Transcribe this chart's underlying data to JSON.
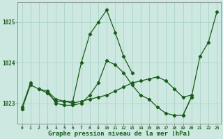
{
  "xlabel": "Graphe pression niveau de la mer (hPa)",
  "bg_color": "#cce8e0",
  "line_color": "#1a5c1a",
  "grid_color": "#aad4c8",
  "x_ticks": [
    0,
    1,
    2,
    3,
    4,
    5,
    6,
    7,
    8,
    9,
    10,
    11,
    12,
    13,
    14,
    15,
    16,
    17,
    18,
    19,
    20,
    21,
    22,
    23
  ],
  "ylim": [
    1022.5,
    1025.5
  ],
  "yticks": [
    1023,
    1024,
    1025
  ],
  "series1": [
    1022.9,
    1023.5,
    null,
    null,
    null,
    null,
    null,
    null,
    null,
    null,
    null,
    null,
    null,
    null,
    null,
    null,
    null,
    null,
    null,
    null,
    null,
    null,
    null,
    null
  ],
  "series2": [
    1022.85,
    1023.45,
    1023.35,
    1023.25,
    1023.05,
    1023.05,
    1023.05,
    1024.0,
    1024.7,
    1025.0,
    1025.3,
    1024.75,
    1024.15,
    1023.75,
    null,
    null,
    null,
    null,
    null,
    null,
    null,
    null,
    null,
    null
  ],
  "series3": [
    null,
    null,
    1023.35,
    1023.3,
    1023.1,
    1023.05,
    1023.0,
    1023.05,
    1023.1,
    1023.15,
    1023.2,
    1023.3,
    1023.4,
    1023.5,
    1023.55,
    1023.6,
    1023.65,
    1023.55,
    1023.35,
    1023.15,
    1023.2,
    null,
    null,
    null
  ],
  "series4": [
    null,
    null,
    null,
    1023.3,
    1023.0,
    1022.95,
    1022.95,
    1023.0,
    1023.2,
    1023.5,
    1024.05,
    1023.95,
    1023.75,
    1023.45,
    1023.2,
    1023.1,
    1022.9,
    1022.75,
    1022.7,
    1022.7,
    1023.15,
    null,
    null,
    null
  ],
  "series5": [
    null,
    null,
    null,
    null,
    null,
    null,
    null,
    null,
    null,
    null,
    null,
    null,
    null,
    null,
    null,
    null,
    null,
    null,
    null,
    1022.7,
    1023.15,
    1024.15,
    1024.5,
    1025.25
  ]
}
